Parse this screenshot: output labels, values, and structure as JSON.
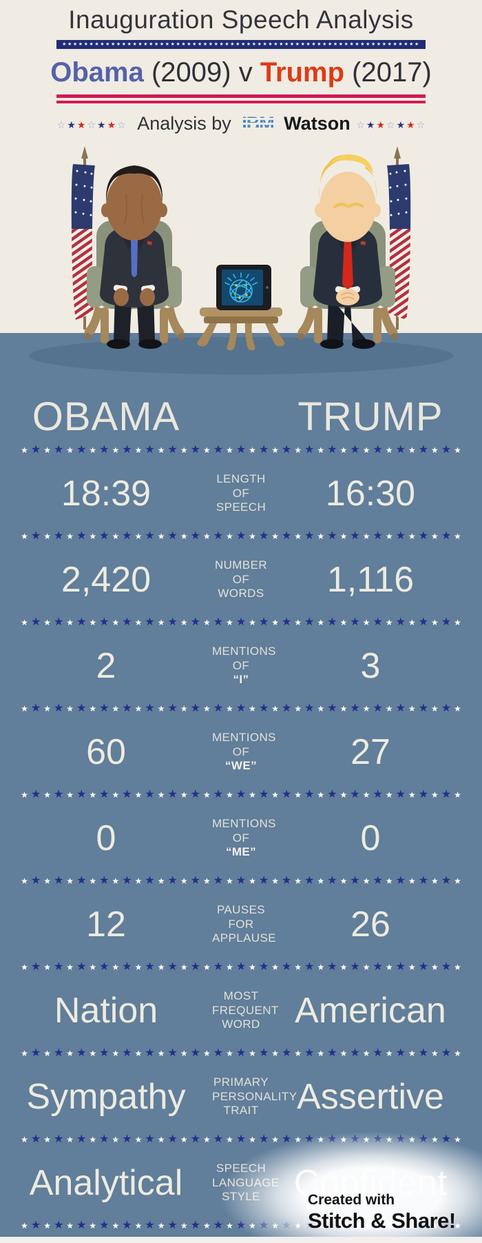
{
  "header": {
    "title": "Inauguration Speech Analysis",
    "matchup": {
      "left_name": "Obama",
      "left_year": "(2009)",
      "vs": "v",
      "right_name": "Trump",
      "right_year": "(2017)"
    },
    "byline": {
      "prefix": "Analysis by",
      "ibm": "IBM",
      "watson": "Watson"
    }
  },
  "comparison": {
    "left_header": "OBAMA",
    "right_header": "TRUMP",
    "rows": [
      {
        "left": "18:39",
        "label": "LENGTH\nOF\nSPEECH",
        "em": "",
        "right": "16:30"
      },
      {
        "left": "2,420",
        "label": "NUMBER\nOF\nWORDS",
        "em": "",
        "right": "1,116"
      },
      {
        "left": "2",
        "label": "MENTIONS\nOF",
        "em": "“I”",
        "right": "3"
      },
      {
        "left": "60",
        "label": "MENTIONS\nOF",
        "em": "“WE”",
        "right": "27"
      },
      {
        "left": "0",
        "label": "MENTIONS\nOF",
        "em": "“ME”",
        "right": "0"
      },
      {
        "left": "12",
        "label": "PAUSES FOR\nAPPLAUSE",
        "em": "",
        "right": "26"
      },
      {
        "left": "Nation",
        "label": "MOST\nFREQUENT\nWORD",
        "em": "",
        "right": "American"
      },
      {
        "left": "Sympathy",
        "label": "PRIMARY\nPERSONALITY\nTRAIT",
        "em": "",
        "right": "Assertive"
      },
      {
        "left": "Analytical",
        "label": "SPEECH\nLANGUAGE\nSTYLE",
        "em": "",
        "right": "Confident"
      }
    ]
  },
  "footer": {
    "line1": "Created with",
    "line2": "Stitch & Share!"
  },
  "colors": {
    "cream_background": "#f0ece3",
    "board_blue": "#617e9a",
    "shadow_blue": "#55738e",
    "navy_star": "#22308b",
    "obama_blue": "#5562a8",
    "trump_red": "#df3a15",
    "pink_rule": "#cf1b56",
    "flag_bar_navy": "#202c74",
    "ibm_blue": "#4d87c7",
    "value_text": "#edebe0"
  },
  "decor": {
    "divider_star_count": 39,
    "flag_bar_star_count": 66,
    "mini_star_pattern": "onronro"
  }
}
